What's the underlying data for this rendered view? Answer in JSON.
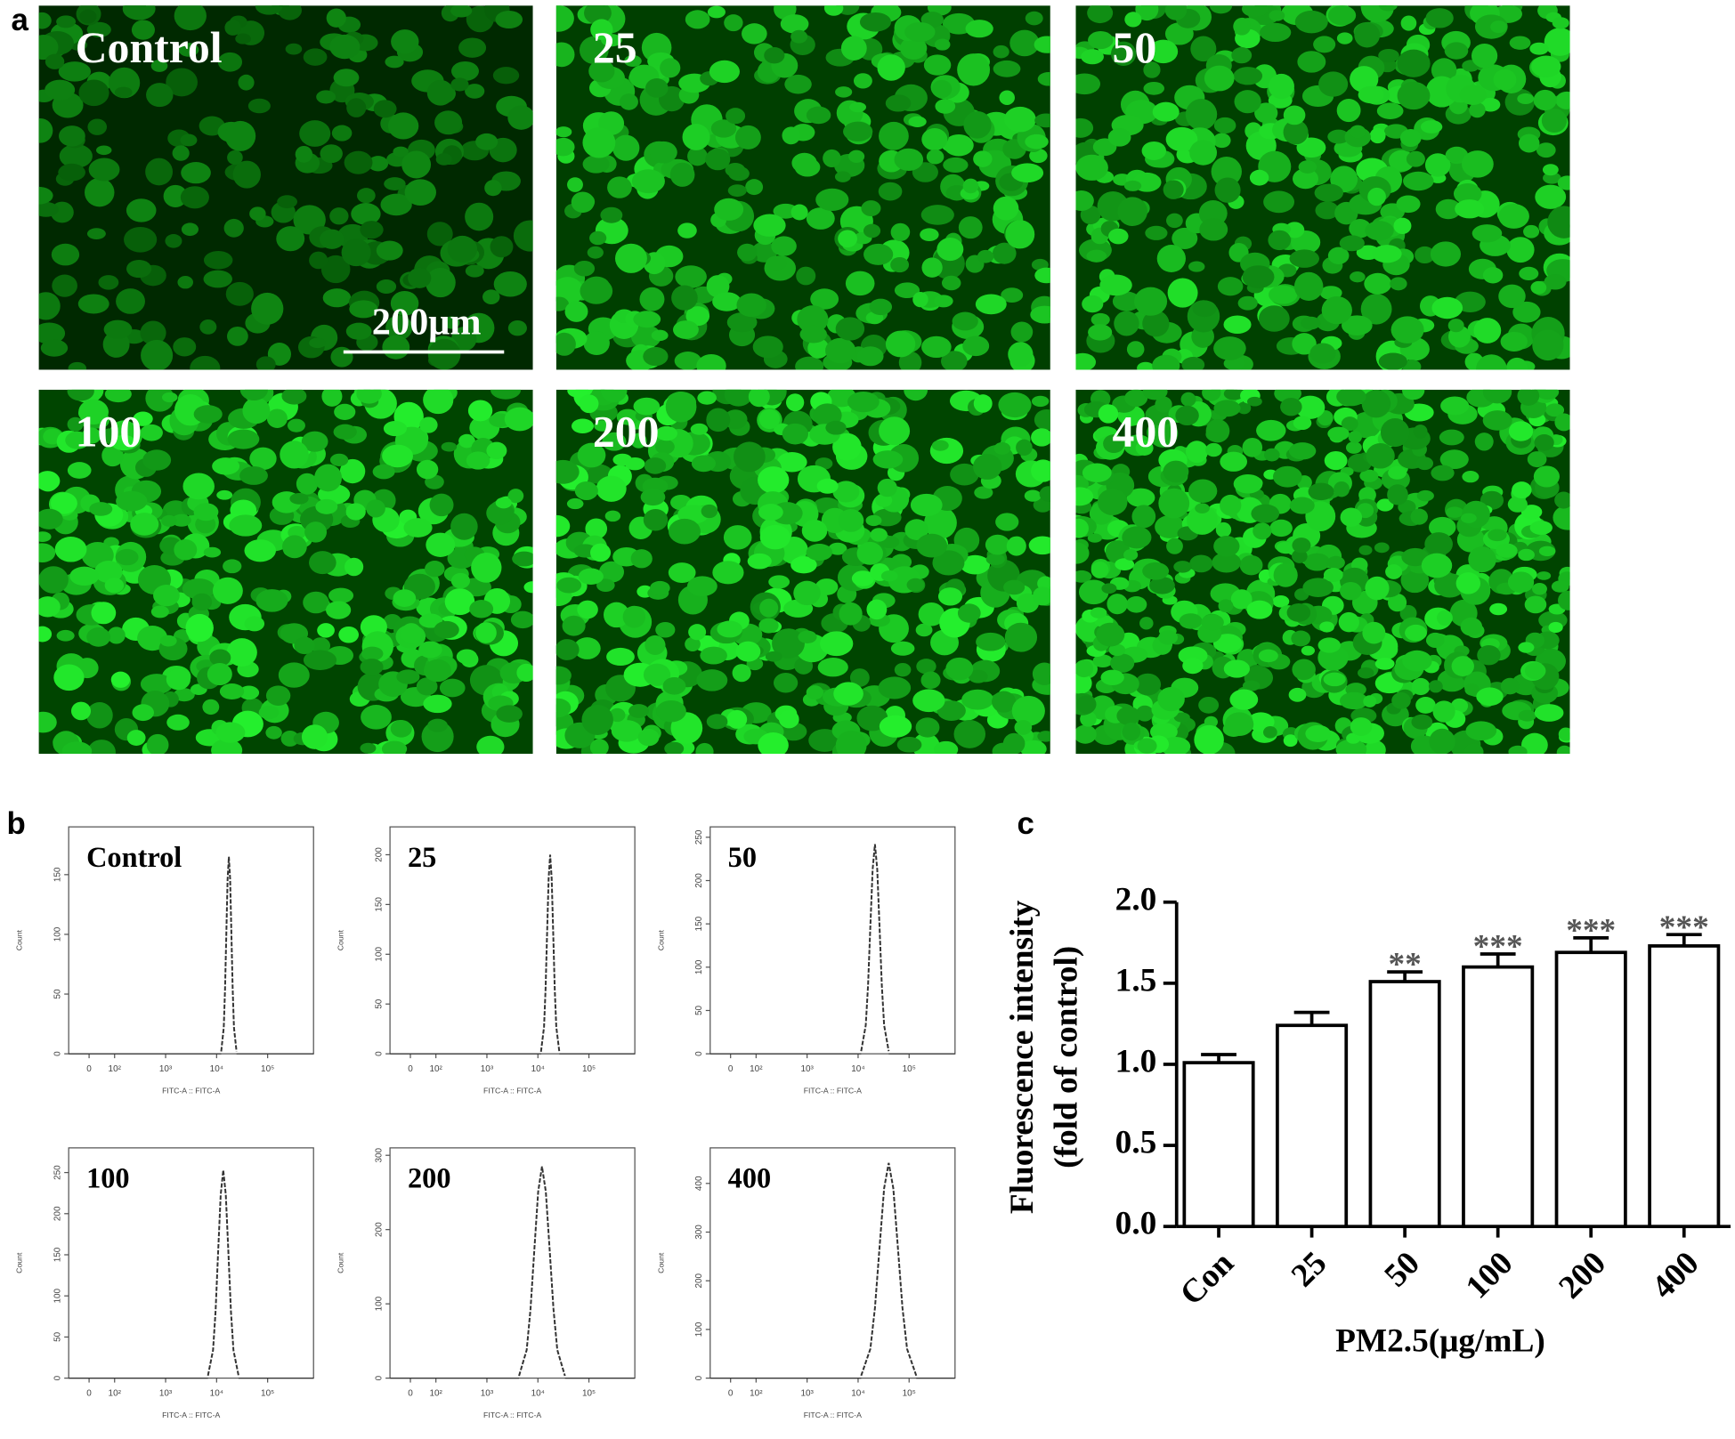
{
  "panel_labels": [
    "a",
    "b",
    "c"
  ],
  "micrographs": {
    "labels": [
      "Control",
      "25",
      "50",
      "100",
      "200",
      "400"
    ],
    "scale_bar": "200μm"
  },
  "chart_data": [
    {
      "type": "density",
      "title": "Control",
      "xlabel": "FITC-A :: FITC-A",
      "ylabel": "Count",
      "xlim": [
        1.1,
        5.9
      ],
      "ylim": [
        0,
        190
      ],
      "xticks": [
        {
          "value": 1.5,
          "label": "0"
        },
        {
          "value": 2,
          "label": "10²"
        },
        {
          "value": 3,
          "label": "10³"
        },
        {
          "value": 4,
          "label": "10⁴"
        },
        {
          "value": 5,
          "label": "10⁵"
        }
      ],
      "yticks": [
        0,
        50,
        100,
        150
      ],
      "color": "#333333",
      "x": [
        4.09,
        4.14,
        4.165,
        4.19,
        4.215,
        4.24,
        4.265,
        4.29,
        4.315,
        4.34,
        4.39
      ],
      "values": [
        2,
        22,
        54,
        100,
        146,
        165,
        146,
        100,
        54,
        22,
        2
      ]
    },
    {
      "type": "density",
      "title": "25",
      "xlabel": "FITC-A :: FITC-A",
      "ylabel": "Count",
      "xlim": [
        1.1,
        5.9
      ],
      "ylim": [
        0,
        228
      ],
      "xticks": [
        {
          "value": 1.5,
          "label": "0"
        },
        {
          "value": 2,
          "label": "10²"
        },
        {
          "value": 3,
          "label": "10³"
        },
        {
          "value": 4,
          "label": "10⁴"
        },
        {
          "value": 5,
          "label": "10⁵"
        }
      ],
      "yticks": [
        0,
        50,
        100,
        150,
        200
      ],
      "color": "#333333",
      "x": [
        4.06,
        4.12,
        4.15,
        4.18,
        4.21,
        4.24,
        4.27,
        4.3,
        4.33,
        4.36,
        4.42
      ],
      "values": [
        2,
        27,
        65,
        121,
        176,
        200,
        176,
        121,
        65,
        27,
        2
      ]
    },
    {
      "type": "density",
      "title": "50",
      "xlabel": "FITC-A :: FITC-A",
      "ylabel": "Count",
      "xlim": [
        1.1,
        5.9
      ],
      "ylim": [
        0,
        262
      ],
      "xticks": [
        {
          "value": 1.5,
          "label": "0"
        },
        {
          "value": 2,
          "label": "10²"
        },
        {
          "value": 3,
          "label": "10³"
        },
        {
          "value": 4,
          "label": "10⁴"
        },
        {
          "value": 5,
          "label": "10⁵"
        }
      ],
      "yticks": [
        0,
        50,
        100,
        150,
        200,
        250
      ],
      "color": "#333333",
      "x": [
        4.06,
        4.15,
        4.195,
        4.24,
        4.285,
        4.33,
        4.375,
        4.42,
        4.465,
        4.51,
        4.6
      ],
      "values": [
        3,
        33,
        79,
        147,
        213,
        242,
        213,
        147,
        79,
        33,
        3
      ]
    },
    {
      "type": "density",
      "title": "100",
      "xlabel": "FITC-A :: FITC-A",
      "ylabel": "Count",
      "xlim": [
        1.1,
        5.9
      ],
      "ylim": [
        0,
        280
      ],
      "xticks": [
        {
          "value": 1.5,
          "label": "0"
        },
        {
          "value": 2,
          "label": "10²"
        },
        {
          "value": 3,
          "label": "10³"
        },
        {
          "value": 4,
          "label": "10⁴"
        },
        {
          "value": 5,
          "label": "10⁵"
        }
      ],
      "yticks": [
        0,
        50,
        100,
        150,
        200,
        250
      ],
      "color": "#333333",
      "x": [
        3.83,
        3.93,
        3.98,
        4.03,
        4.08,
        4.13,
        4.18,
        4.23,
        4.28,
        4.33,
        4.43
      ],
      "values": [
        3,
        34,
        82,
        154,
        223,
        253,
        223,
        154,
        82,
        34,
        3
      ]
    },
    {
      "type": "density",
      "title": "200",
      "xlabel": "FITC-A :: FITC-A",
      "ylabel": "Count",
      "xlim": [
        1.1,
        5.9
      ],
      "ylim": [
        0,
        310
      ],
      "xticks": [
        {
          "value": 1.5,
          "label": "0"
        },
        {
          "value": 2,
          "label": "10²"
        },
        {
          "value": 3,
          "label": "10³"
        },
        {
          "value": 4,
          "label": "10⁴"
        },
        {
          "value": 5,
          "label": "10⁵"
        }
      ],
      "yticks": [
        0,
        100,
        200,
        300
      ],
      "color": "#333333",
      "x": [
        3.63,
        3.78,
        3.855,
        3.93,
        4.005,
        4.08,
        4.155,
        4.23,
        4.305,
        4.38,
        4.53
      ],
      "values": [
        3,
        38,
        93,
        173,
        251,
        285,
        251,
        173,
        93,
        38,
        3
      ]
    },
    {
      "type": "density",
      "title": "400",
      "xlabel": "FITC-A :: FITC-A",
      "ylabel": "Count",
      "xlim": [
        1.1,
        5.9
      ],
      "ylim": [
        0,
        473
      ],
      "xticks": [
        {
          "value": 1.5,
          "label": "0"
        },
        {
          "value": 2,
          "label": "10²"
        },
        {
          "value": 3,
          "label": "10³"
        },
        {
          "value": 4,
          "label": "10⁴"
        },
        {
          "value": 5,
          "label": "10⁵"
        }
      ],
      "yticks": [
        0,
        100,
        200,
        300,
        400
      ],
      "color": "#333333",
      "x": [
        4.06,
        4.24,
        4.33,
        4.42,
        4.51,
        4.6,
        4.69,
        4.78,
        4.87,
        4.96,
        5.14
      ],
      "values": [
        5,
        60,
        144,
        268,
        390,
        442,
        390,
        268,
        144,
        60,
        5
      ]
    },
    {
      "type": "bar",
      "ylabel": [
        "Fluorescence intensity",
        "(fold of control)"
      ],
      "xlabel": "PM2.5(μg/mL)",
      "categories": [
        "Con",
        "25",
        "50",
        "100",
        "200",
        "400"
      ],
      "values": [
        1.01,
        1.24,
        1.51,
        1.6,
        1.69,
        1.73
      ],
      "errors": [
        0.05,
        0.08,
        0.06,
        0.08,
        0.09,
        0.07
      ],
      "significance": [
        null,
        null,
        "**",
        "***",
        "***",
        "***"
      ],
      "color": "#ffffff",
      "edge_color": "#000000",
      "ylim": [
        0,
        2.0
      ],
      "yticks": [
        {
          "value": 0,
          "label": "0.0"
        },
        0.5,
        {
          "value": 1.0,
          "label": "1.0"
        },
        1.5,
        {
          "value": 2.0,
          "label": "2.0"
        }
      ]
    }
  ]
}
